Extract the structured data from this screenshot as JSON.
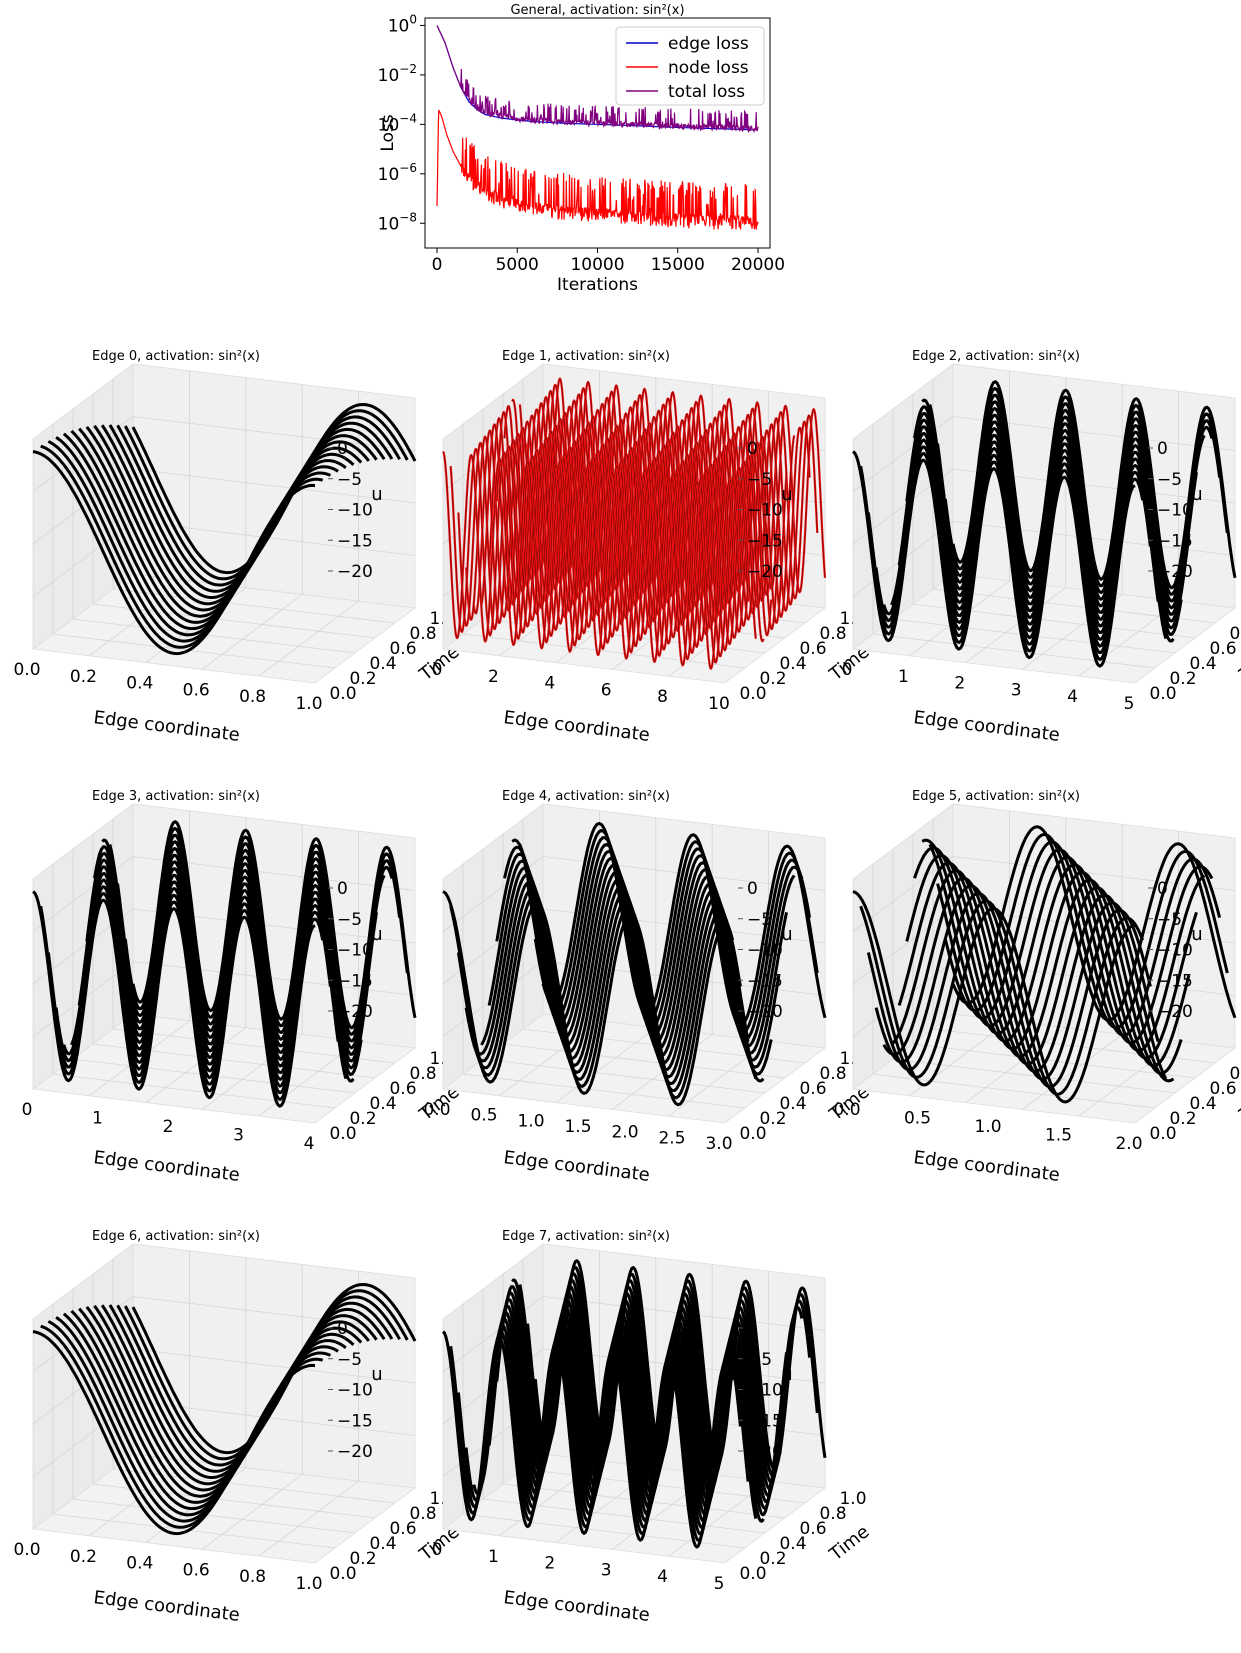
{
  "chart_data": [
    {
      "type": "line",
      "title": "General, activation: sin²(x)",
      "xlabel": "Iterations",
      "ylabel": "Loss",
      "y_scale": "log",
      "xlim": [
        0,
        20000
      ],
      "ylim": [
        1e-09,
        2
      ],
      "xticks": [
        "0",
        "5000",
        "10000",
        "15000",
        "20000"
      ],
      "yticks": [
        {
          "base": "10",
          "exp": "0"
        },
        {
          "base": "10",
          "exp": "−2"
        },
        {
          "base": "10",
          "exp": "−4"
        },
        {
          "base": "10",
          "exp": "−6"
        },
        {
          "base": "10",
          "exp": "−8"
        }
      ],
      "legend_position": "top-right",
      "grid": false,
      "series": [
        {
          "name": "edge loss",
          "color": "#0000cc",
          "x": [
            0,
            500,
            1000,
            1500,
            2000,
            2500,
            3000,
            4000,
            5000,
            6000,
            8000,
            10000,
            12000,
            15000,
            18000,
            20000
          ],
          "y": [
            1.0,
            0.2,
            0.02,
            0.003,
            0.0008,
            0.0004,
            0.00025,
            0.00018,
            0.00015,
            0.00013,
            0.00011,
            0.0001,
            9e-05,
            7.5e-05,
            6.5e-05,
            6e-05
          ]
        },
        {
          "name": "node loss",
          "color": "#ff0000",
          "x": [
            0,
            100,
            300,
            600,
            1000,
            1500,
            2000,
            3000,
            4000,
            5000,
            7000,
            10000,
            13000,
            16000,
            20000
          ],
          "y": [
            5e-08,
            0.0004,
            0.0002,
            4e-05,
            8e-06,
            2e-06,
            6e-07,
            1.5e-07,
            8e-08,
            5e-08,
            3e-08,
            2e-08,
            1.5e-08,
            1.2e-08,
            1e-08
          ]
        },
        {
          "name": "total loss",
          "color": "#800080",
          "x": [
            0,
            500,
            1000,
            1500,
            2000,
            2500,
            3000,
            4000,
            5000,
            6000,
            8000,
            10000,
            12000,
            15000,
            18000,
            20000
          ],
          "y": [
            1.0,
            0.2,
            0.02,
            0.003,
            0.0008,
            0.0004,
            0.00025,
            0.00018,
            0.00015,
            0.00013,
            0.00011,
            0.0001,
            9e-05,
            7.5e-05,
            6.5e-05,
            6e-05
          ]
        }
      ]
    },
    {
      "type": "surface3d",
      "title": "Edge 0, activation: sin²(x)",
      "xlabel": "Edge coordinate",
      "ylabel": "Time",
      "zlabel": "u",
      "xlim": [
        0,
        1.0
      ],
      "ylim": [
        0,
        1.0
      ],
      "zlim": [
        -20,
        0
      ],
      "xticks": [
        "0.0",
        "0.2",
        "0.4",
        "0.6",
        "0.8",
        "1.0"
      ],
      "yticks": [
        "0.0",
        "0.2",
        "0.4",
        "0.6",
        "0.8",
        "1.0"
      ],
      "zticks": [
        "0",
        "−5",
        "−10",
        "−15",
        "−20"
      ],
      "wave_periods": 1,
      "style": "smooth"
    },
    {
      "type": "surface3d",
      "title": "Edge 1, activation: sin²(x)",
      "xlabel": "Edge coordinate",
      "ylabel": "Time",
      "zlabel": "u",
      "xlim": [
        0,
        10
      ],
      "ylim": [
        0,
        1.0
      ],
      "zlim": [
        -20,
        0
      ],
      "xticks": [
        "0",
        "2",
        "4",
        "6",
        "8",
        "10"
      ],
      "yticks": [
        "0.0",
        "0.2",
        "0.4",
        "0.6",
        "0.8",
        "1.0"
      ],
      "zticks": [
        "0",
        "−5",
        "−10",
        "−15",
        "−20"
      ],
      "wave_periods": 10,
      "style": "red"
    },
    {
      "type": "surface3d",
      "title": "Edge 2, activation: sin²(x)",
      "xlabel": "Edge coordinate",
      "ylabel": "Time",
      "zlabel": "u",
      "xlim": [
        0,
        5
      ],
      "ylim": [
        0,
        1.0
      ],
      "zlim": [
        -20,
        0
      ],
      "xticks": [
        "0",
        "1",
        "2",
        "3",
        "4",
        "5"
      ],
      "yticks": [
        "0.0",
        "0.2",
        "0.4",
        "0.6",
        "0.8",
        "1.0"
      ],
      "zticks": [
        "0",
        "−5",
        "−10",
        "−15",
        "−20"
      ],
      "wave_periods": 4,
      "style": "dense"
    },
    {
      "type": "surface3d",
      "title": "Edge 3, activation: sin²(x)",
      "xlabel": "Edge coordinate",
      "ylabel": "Time",
      "zlabel": "u",
      "xlim": [
        0,
        4
      ],
      "ylim": [
        0,
        1.0
      ],
      "zlim": [
        -20,
        0
      ],
      "xticks": [
        "0",
        "1",
        "2",
        "3",
        "4"
      ],
      "yticks": [
        "0.0",
        "0.2",
        "0.4",
        "0.6",
        "0.8",
        "1.0"
      ],
      "zticks": [
        "0",
        "−5",
        "−10",
        "−15",
        "−20"
      ],
      "wave_periods": 4,
      "style": "dense"
    },
    {
      "type": "surface3d",
      "title": "Edge 4, activation: sin²(x)",
      "xlabel": "Edge coordinate",
      "ylabel": "Time",
      "zlabel": "u",
      "xlim": [
        0,
        3.0
      ],
      "ylim": [
        0,
        1.0
      ],
      "zlim": [
        -20,
        0
      ],
      "xticks": [
        "0.0",
        "0.5",
        "1.0",
        "1.5",
        "2.0",
        "2.5",
        "3.0"
      ],
      "yticks": [
        "0.0",
        "0.2",
        "0.4",
        "0.6",
        "0.8",
        "1.0"
      ],
      "zticks": [
        "0",
        "−5",
        "−10",
        "−15",
        "−20"
      ],
      "wave_periods": 3,
      "style": "dense"
    },
    {
      "type": "surface3d",
      "title": "Edge 5, activation: sin²(x)",
      "xlabel": "Edge coordinate",
      "ylabel": "Time",
      "zlabel": "u",
      "xlim": [
        0,
        2.0
      ],
      "ylim": [
        0,
        1.0
      ],
      "zlim": [
        -20,
        0
      ],
      "xticks": [
        "0.0",
        "0.5",
        "1.0",
        "1.5",
        "2.0"
      ],
      "yticks": [
        "0.0",
        "0.2",
        "0.4",
        "0.6",
        "0.8",
        "1.0"
      ],
      "zticks": [
        "0",
        "−5",
        "−10",
        "−15",
        "−20"
      ],
      "wave_periods": 2,
      "style": "dense"
    },
    {
      "type": "surface3d",
      "title": "Edge 6, activation: sin²(x)",
      "xlabel": "Edge coordinate",
      "ylabel": "Time",
      "zlabel": "u",
      "xlim": [
        0,
        1.0
      ],
      "ylim": [
        0,
        1.0
      ],
      "zlim": [
        -20,
        0
      ],
      "xticks": [
        "0.0",
        "0.2",
        "0.4",
        "0.6",
        "0.8",
        "1.0"
      ],
      "yticks": [
        "0.0",
        "0.2",
        "0.4",
        "0.6",
        "0.8",
        "1.0"
      ],
      "zticks": [
        "0",
        "−5",
        "−10",
        "−15",
        "−20"
      ],
      "wave_periods": 1,
      "style": "smooth"
    },
    {
      "type": "surface3d",
      "title": "Edge 7, activation: sin²(x)",
      "xlabel": "Edge coordinate",
      "ylabel": "Time",
      "zlabel": "u",
      "xlim": [
        0,
        5
      ],
      "ylim": [
        0,
        1.0
      ],
      "zlim": [
        -20,
        0
      ],
      "xticks": [
        "0",
        "1",
        "2",
        "3",
        "4",
        "5"
      ],
      "yticks": [
        "0.0",
        "0.2",
        "0.4",
        "0.6",
        "0.8",
        "1.0"
      ],
      "zticks": [
        "0",
        "−5",
        "−10",
        "−15",
        "−20"
      ],
      "wave_periods": 5,
      "style": "dense"
    }
  ]
}
